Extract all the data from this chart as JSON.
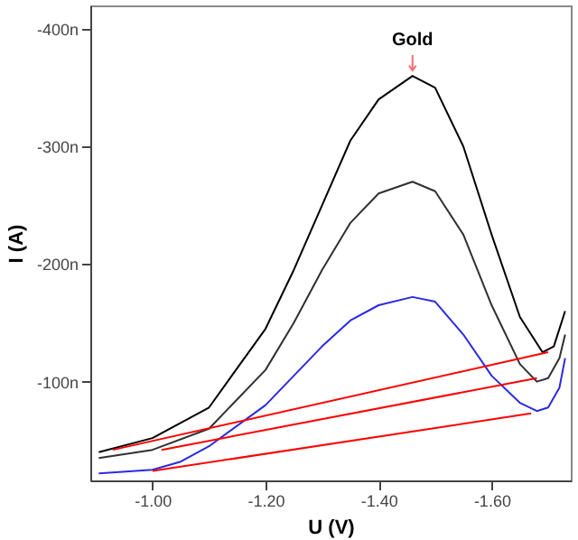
{
  "chart_data": {
    "type": "line",
    "xlabel": "U (V)",
    "ylabel": "I (A)",
    "xlim": [
      -0.89,
      -1.74
    ],
    "xticks": [
      {
        "value": -1,
        "label": "-1.00"
      },
      {
        "value": -1.2,
        "label": "-1.20"
      },
      {
        "value": -1.4,
        "label": "-1.40"
      },
      {
        "value": -1.6,
        "label": "-1.60"
      }
    ],
    "ylim": [
      -16,
      -420
    ],
    "yticks": [
      {
        "value": -100,
        "label": "-100n"
      },
      {
        "value": -200,
        "label": "-200n"
      },
      {
        "value": -300,
        "label": "-300n"
      },
      {
        "value": -400,
        "label": "-400n"
      }
    ],
    "grid": false,
    "legend": false,
    "line_style": "solid",
    "annotations": [
      {
        "text": "Gold",
        "x": -1.46,
        "y": -360
      }
    ],
    "series": [
      {
        "color": "#000000",
        "x": [
          -0.905,
          -1.0,
          -1.1,
          -1.2,
          -1.25,
          -1.3,
          -1.35,
          -1.4,
          -1.46,
          -1.5,
          -1.55,
          -1.6,
          -1.65,
          -1.69,
          -1.71,
          -1.73
        ],
        "values": [
          -40,
          -52,
          -78,
          -145,
          -195,
          -250,
          -305,
          -340,
          -360,
          -350,
          -300,
          -225,
          -155,
          -125,
          -130,
          -160
        ]
      },
      {
        "color": "#303030",
        "x": [
          -0.905,
          -1.0,
          -1.1,
          -1.2,
          -1.25,
          -1.3,
          -1.35,
          -1.4,
          -1.46,
          -1.5,
          -1.55,
          -1.6,
          -1.65,
          -1.68,
          -1.7,
          -1.72,
          -1.73
        ],
        "values": [
          -35,
          -42,
          -60,
          -110,
          -150,
          -195,
          -235,
          -260,
          -270,
          -262,
          -225,
          -165,
          -115,
          -100,
          -103,
          -120,
          -140
        ]
      },
      {
        "color": "#2a2ae0",
        "x": [
          -0.905,
          -1.0,
          -1.05,
          -1.1,
          -1.2,
          -1.25,
          -1.3,
          -1.35,
          -1.4,
          -1.46,
          -1.5,
          -1.55,
          -1.6,
          -1.65,
          -1.68,
          -1.7,
          -1.72,
          -1.73
        ],
        "values": [
          -22,
          -25,
          -32,
          -45,
          -80,
          -105,
          -130,
          -152,
          -165,
          -172,
          -168,
          -140,
          -105,
          -82,
          -75,
          -78,
          -95,
          -120
        ]
      },
      {
        "color": "#ff0000",
        "x": [
          -0.93,
          -1.7
        ],
        "values": [
          -42,
          -125
        ]
      },
      {
        "color": "#ff0000",
        "x": [
          -1.016,
          -1.68
        ],
        "values": [
          -42,
          -103
        ]
      },
      {
        "color": "#ff0000",
        "x": [
          -1.0,
          -1.67
        ],
        "values": [
          -24,
          -73
        ]
      }
    ]
  }
}
